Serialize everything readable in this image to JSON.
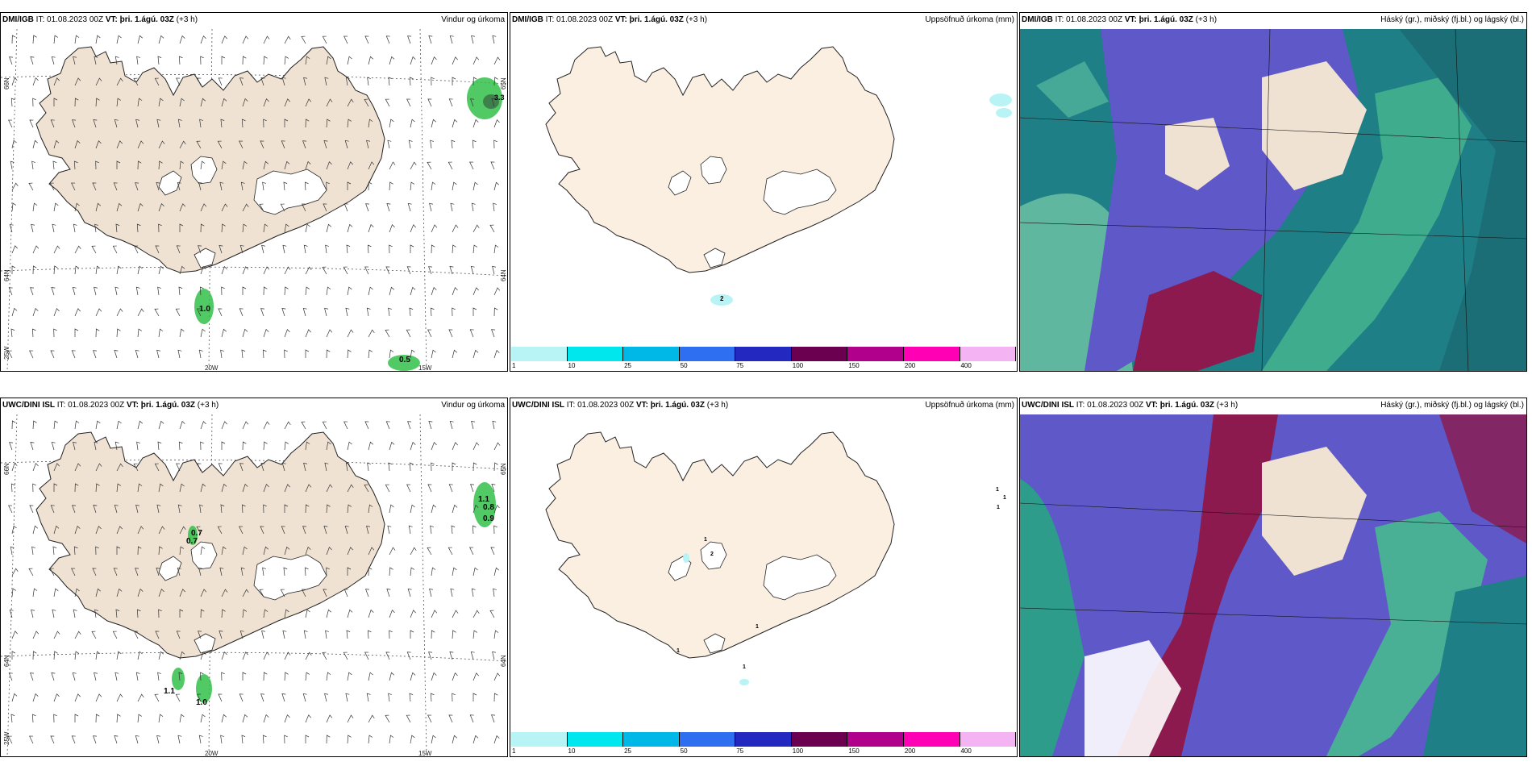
{
  "panels": [
    {
      "model": "DMI/IGB",
      "it": "IT: 01.08.2023 00Z",
      "vt_label": "VT:",
      "vt": "þri. 1.ágú. 03Z",
      "lead": "(+3 h)",
      "product": "Vindur og úrkoma",
      "kind": "wind",
      "values": [
        "1.0",
        "0.5",
        "3.3"
      ],
      "lat_labels": [
        "66N",
        "64N",
        "65N"
      ],
      "lon_labels": [
        "25W",
        "20W",
        "15W"
      ],
      "right_lat": [
        "65N",
        "64N"
      ]
    },
    {
      "model": "DMI/IGB",
      "it": "IT: 01.08.2023 00Z",
      "vt_label": "VT:",
      "vt": "þri. 1.ágú. 03Z",
      "lead": "(+3 h)",
      "product": "Uppsöfnuð úrkoma (mm)",
      "kind": "precip",
      "values": [
        "2"
      ]
    },
    {
      "model": "DMI/IGB",
      "it": "IT: 01.08.2023 00Z",
      "vt_label": "VT:",
      "vt": "þri. 1.ágú. 03Z",
      "lead": "(+3 h)",
      "product": "Háský (gr.), miðský (fj.bl.) og lágský (bl.)",
      "kind": "cloud"
    },
    {
      "model": "UWC/DINI ISL",
      "it": "IT: 01.08.2023 00Z",
      "vt_label": "VT:",
      "vt": "þri. 1.ágú. 03Z",
      "lead": "(+3 h)",
      "product": "Vindur og úrkoma",
      "kind": "wind",
      "values": [
        "1.1",
        "0.8",
        "0.9",
        "0.7",
        "0.7",
        "1.1",
        "1.0"
      ],
      "lat_labels": [
        "66N",
        "64N",
        "65N"
      ],
      "lon_labels": [
        "25W",
        "20W",
        "15W"
      ],
      "right_lat": [
        "65N",
        "64N"
      ]
    },
    {
      "model": "UWC/DINI ISL",
      "it": "IT: 01.08.2023 00Z",
      "vt_label": "VT:",
      "vt": "þri. 1.ágú. 03Z",
      "lead": "(+3 h)",
      "product": "Uppsöfnuð úrkoma (mm)",
      "kind": "precip",
      "values": [
        "1",
        "1",
        "1",
        "2",
        "1",
        "1",
        "1",
        "1"
      ]
    },
    {
      "model": "UWC/DINI ISL",
      "it": "IT: 01.08.2023 00Z",
      "vt_label": "VT:",
      "vt": "þri. 1.ágú. 03Z",
      "lead": "(+3 h)",
      "product": "Háský (gr.), miðský (fj.bl.) og lágský (bl.)",
      "kind": "cloud2"
    }
  ],
  "colorbar": {
    "ticks": [
      "1",
      "10",
      "25",
      "50",
      "75",
      "100",
      "150",
      "200",
      "400"
    ],
    "colors": [
      "#b8f4f6",
      "#00e8ee",
      "#00b8e8",
      "#2e6ef0",
      "#2228c0",
      "#6c0050",
      "#b0008c",
      "#ff00b4",
      "#f4b4f4"
    ]
  },
  "colors": {
    "land": "#efe2d2",
    "land2": "#fbefe2",
    "ocean_cloud": "#1f7f86",
    "high_cloud": "#5f58c9",
    "low_cloud": "#8c1a4e",
    "mid_cloud": "#47b98f",
    "precip_green": "#33c04a"
  }
}
